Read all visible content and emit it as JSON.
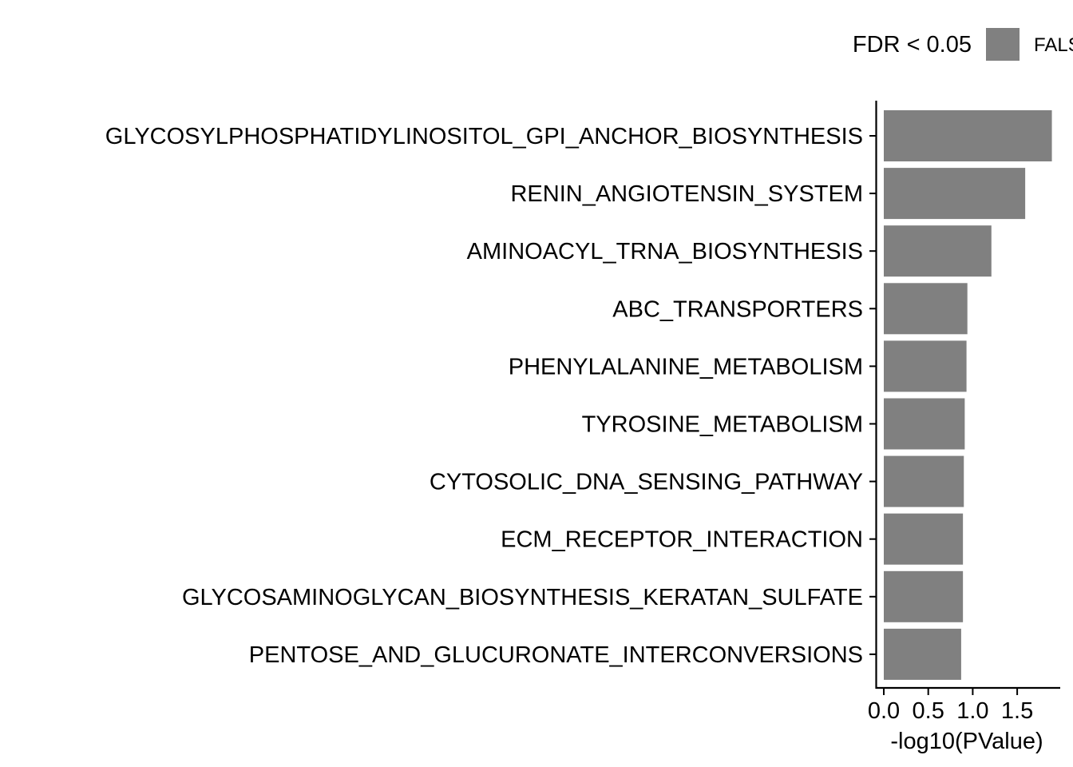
{
  "chart_data": {
    "type": "bar",
    "orientation": "horizontal",
    "categories": [
      "GLYCOSYLPHOSPHATIDYLINOSITOL_GPI_ANCHOR_BIOSYNTHESIS",
      "RENIN_ANGIOTENSIN_SYSTEM",
      "AMINOACYL_TRNA_BIOSYNTHESIS",
      "ABC_TRANSPORTERS",
      "PHENYLALANINE_METABOLISM",
      "TYROSINE_METABOLISM",
      "CYTOSOLIC_DNA_SENSING_PATHWAY",
      "ECM_RECEPTOR_INTERACTION",
      "GLYCOSAMINOGLYCAN_BIOSYNTHESIS_KERATAN_SULFATE",
      "PENTOSE_AND_GLUCURONATE_INTERCONVERSIONS"
    ],
    "values": [
      1.89,
      1.59,
      1.21,
      0.94,
      0.93,
      0.91,
      0.9,
      0.89,
      0.89,
      0.87
    ],
    "fill_group": "FALSE",
    "bar_color": "#808080",
    "xlabel": "-log10(PValue)",
    "ylabel": "",
    "xlim": [
      0,
      1.96
    ],
    "xticks": [
      "0.0",
      "0.5",
      "1.0",
      "1.5"
    ],
    "xtick_values": [
      0,
      0.5,
      1.0,
      1.5
    ],
    "grid": false,
    "legend": {
      "title": "FDR < 0.05",
      "entries": [
        {
          "label": "FALSE",
          "color": "#808080"
        }
      ],
      "placement": "top"
    }
  }
}
